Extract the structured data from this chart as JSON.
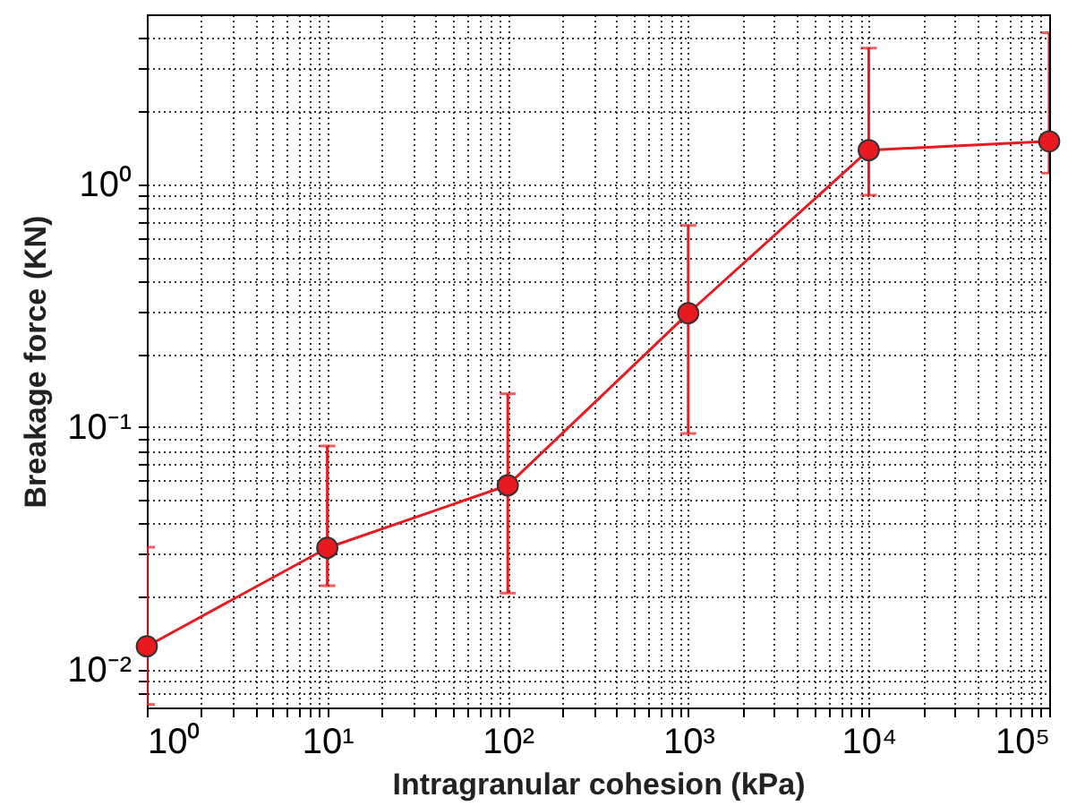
{
  "chart_data": {
    "type": "line",
    "xlabel": "Intragranular cohesion (kPa)",
    "ylabel": "Breakage force (KN)",
    "log": "xy",
    "grid": true,
    "marker": "circle",
    "line_style": "solid",
    "x": [
      1,
      10,
      100,
      1000,
      10000,
      100000
    ],
    "series": [
      {
        "color": "#e8191f",
        "values": [
          0.0125,
          0.0318,
          0.0575,
          0.294,
          1.38,
          1.5
        ],
        "errors": [
          [
            0.0072,
            0.032
          ],
          [
            0.0222,
            0.0835
          ],
          [
            0.0207,
            0.137
          ],
          [
            0.094,
            0.676
          ],
          [
            0.9,
            3.63
          ],
          [
            1.11,
            4.2
          ]
        ]
      }
    ],
    "xlim": [
      1,
      100000
    ],
    "ylim": [
      0.007,
      5
    ],
    "xticks": [
      {
        "value": 1,
        "label": "10⁰"
      },
      {
        "value": 2,
        "label": null
      },
      {
        "value": 3,
        "label": null
      },
      {
        "value": 4,
        "label": null
      },
      {
        "value": 5,
        "label": null
      },
      {
        "value": 6,
        "label": null
      },
      {
        "value": 7,
        "label": null
      },
      {
        "value": 8,
        "label": null
      },
      {
        "value": 9,
        "label": null
      },
      {
        "value": 10,
        "label": "10¹"
      },
      {
        "value": 20,
        "label": null
      },
      {
        "value": 30,
        "label": null
      },
      {
        "value": 40,
        "label": null
      },
      {
        "value": 50,
        "label": null
      },
      {
        "value": 60,
        "label": null
      },
      {
        "value": 70,
        "label": null
      },
      {
        "value": 80,
        "label": null
      },
      {
        "value": 90,
        "label": null
      },
      {
        "value": 100,
        "label": "10²"
      },
      {
        "value": 200,
        "label": null
      },
      {
        "value": 300,
        "label": null
      },
      {
        "value": 400,
        "label": null
      },
      {
        "value": 500,
        "label": null
      },
      {
        "value": 600,
        "label": null
      },
      {
        "value": 700,
        "label": null
      },
      {
        "value": 800,
        "label": null
      },
      {
        "value": 900,
        "label": null
      },
      {
        "value": 1000,
        "label": "10³"
      },
      {
        "value": 2000,
        "label": null
      },
      {
        "value": 3000,
        "label": null
      },
      {
        "value": 4000,
        "label": null
      },
      {
        "value": 5000,
        "label": null
      },
      {
        "value": 6000,
        "label": null
      },
      {
        "value": 7000,
        "label": null
      },
      {
        "value": 8000,
        "label": null
      },
      {
        "value": 9000,
        "label": null
      },
      {
        "value": 10000,
        "label": "10⁴"
      },
      {
        "value": 20000,
        "label": null
      },
      {
        "value": 30000,
        "label": null
      },
      {
        "value": 40000,
        "label": null
      },
      {
        "value": 50000,
        "label": null
      },
      {
        "value": 60000,
        "label": null
      },
      {
        "value": 70000,
        "label": null
      },
      {
        "value": 80000,
        "label": null
      },
      {
        "value": 90000,
        "label": null
      },
      {
        "value": 100000,
        "label": "10⁵"
      }
    ],
    "yticks": [
      {
        "value": 0.008,
        "label": null
      },
      {
        "value": 0.009,
        "label": null
      },
      {
        "value": 0.01,
        "label": "10⁻²"
      },
      {
        "value": 0.02,
        "label": null
      },
      {
        "value": 0.03,
        "label": null
      },
      {
        "value": 0.04,
        "label": null
      },
      {
        "value": 0.05,
        "label": null
      },
      {
        "value": 0.06,
        "label": null
      },
      {
        "value": 0.07,
        "label": null
      },
      {
        "value": 0.08,
        "label": null
      },
      {
        "value": 0.09,
        "label": null
      },
      {
        "value": 0.1,
        "label": "10⁻¹"
      },
      {
        "value": 0.2,
        "label": null
      },
      {
        "value": 0.3,
        "label": null
      },
      {
        "value": 0.4,
        "label": null
      },
      {
        "value": 0.5,
        "label": null
      },
      {
        "value": 0.6,
        "label": null
      },
      {
        "value": 0.7,
        "label": null
      },
      {
        "value": 0.8,
        "label": null
      },
      {
        "value": 0.9,
        "label": null
      },
      {
        "value": 1,
        "label": "10⁰"
      },
      {
        "value": 2,
        "label": null
      },
      {
        "value": 3,
        "label": null
      },
      {
        "value": 4,
        "label": null
      }
    ]
  }
}
